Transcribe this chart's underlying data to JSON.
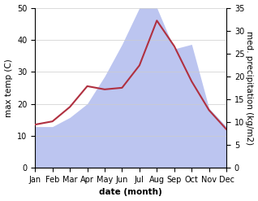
{
  "months": [
    "Jan",
    "Feb",
    "Mar",
    "Apr",
    "May",
    "Jun",
    "Jul",
    "Aug",
    "Sep",
    "Oct",
    "Nov",
    "Dec"
  ],
  "temp": [
    13.5,
    14.5,
    19.0,
    25.5,
    24.5,
    25.0,
    32.0,
    46.0,
    38.0,
    27.0,
    18.0,
    12.0
  ],
  "precip": [
    9,
    9,
    11,
    14,
    20,
    27,
    35,
    35,
    26,
    27,
    13,
    9
  ],
  "temp_color": "#b03040",
  "precip_fill_color": "#bcc5f0",
  "ylabel_left": "max temp (C)",
  "ylabel_right": "med. precipitation (kg/m2)",
  "xlabel": "date (month)",
  "ylim_left": [
    0,
    50
  ],
  "ylim_right": [
    0,
    35
  ],
  "yticks_left": [
    0,
    10,
    20,
    30,
    40,
    50
  ],
  "yticks_right": [
    0,
    5,
    10,
    15,
    20,
    25,
    30,
    35
  ],
  "label_fontsize": 7.5,
  "tick_fontsize": 7.0
}
